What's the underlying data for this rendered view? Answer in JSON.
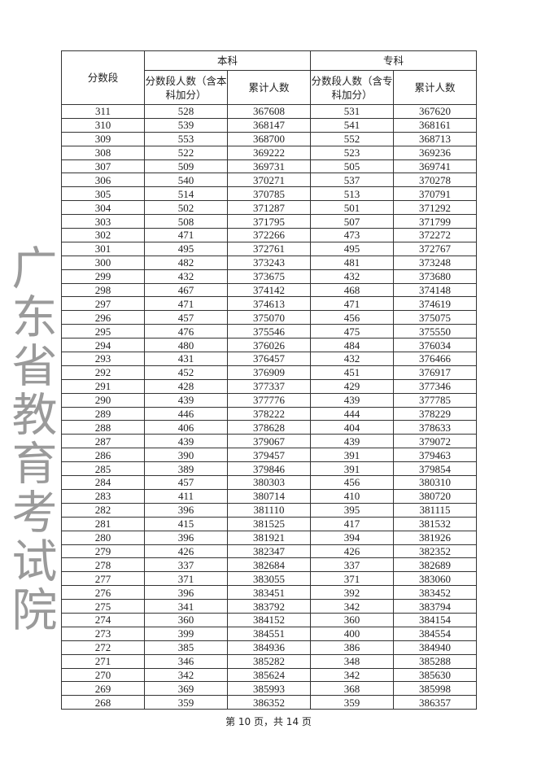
{
  "watermark": "广东省教育考试院",
  "table": {
    "header_score": "分数段",
    "group_benke": "本科",
    "group_zhuanke": "专科",
    "benke_count": "分数段人数（含本科加分）",
    "benke_cum": "累计人数",
    "zhuanke_count": "分数段人数（含专科加分）",
    "zhuanke_cum": "累计人数",
    "rows": [
      [
        "311",
        "528",
        "367608",
        "531",
        "367620"
      ],
      [
        "310",
        "539",
        "368147",
        "541",
        "368161"
      ],
      [
        "309",
        "553",
        "368700",
        "552",
        "368713"
      ],
      [
        "308",
        "522",
        "369222",
        "523",
        "369236"
      ],
      [
        "307",
        "509",
        "369731",
        "505",
        "369741"
      ],
      [
        "306",
        "540",
        "370271",
        "537",
        "370278"
      ],
      [
        "305",
        "514",
        "370785",
        "513",
        "370791"
      ],
      [
        "304",
        "502",
        "371287",
        "501",
        "371292"
      ],
      [
        "303",
        "508",
        "371795",
        "507",
        "371799"
      ],
      [
        "302",
        "471",
        "372266",
        "473",
        "372272"
      ],
      [
        "301",
        "495",
        "372761",
        "495",
        "372767"
      ],
      [
        "300",
        "482",
        "373243",
        "481",
        "373248"
      ],
      [
        "299",
        "432",
        "373675",
        "432",
        "373680"
      ],
      [
        "298",
        "467",
        "374142",
        "468",
        "374148"
      ],
      [
        "297",
        "471",
        "374613",
        "471",
        "374619"
      ],
      [
        "296",
        "457",
        "375070",
        "456",
        "375075"
      ],
      [
        "295",
        "476",
        "375546",
        "475",
        "375550"
      ],
      [
        "294",
        "480",
        "376026",
        "484",
        "376034"
      ],
      [
        "293",
        "431",
        "376457",
        "432",
        "376466"
      ],
      [
        "292",
        "452",
        "376909",
        "451",
        "376917"
      ],
      [
        "291",
        "428",
        "377337",
        "429",
        "377346"
      ],
      [
        "290",
        "439",
        "377776",
        "439",
        "377785"
      ],
      [
        "289",
        "446",
        "378222",
        "444",
        "378229"
      ],
      [
        "288",
        "406",
        "378628",
        "404",
        "378633"
      ],
      [
        "287",
        "439",
        "379067",
        "439",
        "379072"
      ],
      [
        "286",
        "390",
        "379457",
        "391",
        "379463"
      ],
      [
        "285",
        "389",
        "379846",
        "391",
        "379854"
      ],
      [
        "284",
        "457",
        "380303",
        "456",
        "380310"
      ],
      [
        "283",
        "411",
        "380714",
        "410",
        "380720"
      ],
      [
        "282",
        "396",
        "381110",
        "395",
        "381115"
      ],
      [
        "281",
        "415",
        "381525",
        "417",
        "381532"
      ],
      [
        "280",
        "396",
        "381921",
        "394",
        "381926"
      ],
      [
        "279",
        "426",
        "382347",
        "426",
        "382352"
      ],
      [
        "278",
        "337",
        "382684",
        "337",
        "382689"
      ],
      [
        "277",
        "371",
        "383055",
        "371",
        "383060"
      ],
      [
        "276",
        "396",
        "383451",
        "392",
        "383452"
      ],
      [
        "275",
        "341",
        "383792",
        "342",
        "383794"
      ],
      [
        "274",
        "360",
        "384152",
        "360",
        "384154"
      ],
      [
        "273",
        "399",
        "384551",
        "400",
        "384554"
      ],
      [
        "272",
        "385",
        "384936",
        "386",
        "384940"
      ],
      [
        "271",
        "346",
        "385282",
        "348",
        "385288"
      ],
      [
        "270",
        "342",
        "385624",
        "342",
        "385630"
      ],
      [
        "269",
        "369",
        "385993",
        "368",
        "385998"
      ],
      [
        "268",
        "359",
        "386352",
        "359",
        "386357"
      ]
    ]
  },
  "footer": "第 10 页，共 14 页"
}
